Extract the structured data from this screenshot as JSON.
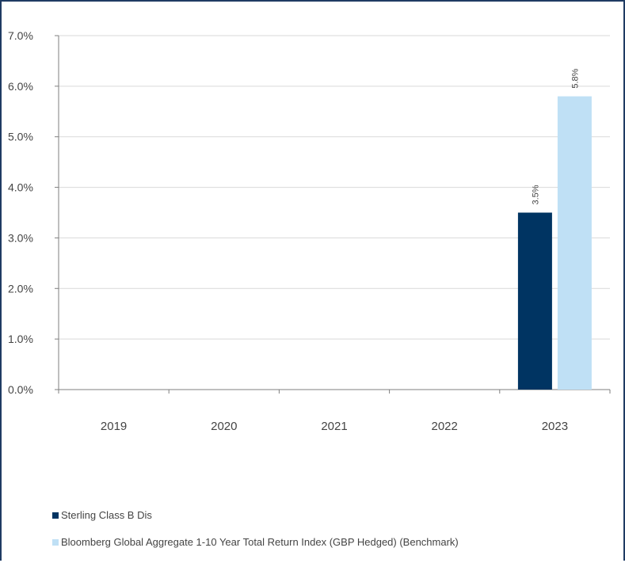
{
  "chart_data": {
    "type": "bar",
    "categories": [
      "2019",
      "2020",
      "2021",
      "2022",
      "2023"
    ],
    "series": [
      {
        "name": "Sterling Class B Dis",
        "values": [
          null,
          null,
          null,
          null,
          3.5
        ],
        "color": "#003462"
      },
      {
        "name": "Bloomberg Global Aggregate 1-10 Year Total Return Index (GBP Hedged) (Benchmark)",
        "values": [
          null,
          null,
          null,
          null,
          5.8
        ],
        "color": "#bfe0f5"
      }
    ],
    "data_labels": [
      {
        "series": 0,
        "category": "2023",
        "text": "3.5%"
      },
      {
        "series": 1,
        "category": "2023",
        "text": "5.8%"
      }
    ],
    "y_ticks": [
      "0.0%",
      "1.0%",
      "2.0%",
      "3.0%",
      "4.0%",
      "5.0%",
      "6.0%",
      "7.0%"
    ],
    "ylim": [
      0,
      7
    ],
    "title": "",
    "xlabel": "",
    "ylabel": "",
    "grid": true,
    "legend_position": "bottom-left"
  }
}
